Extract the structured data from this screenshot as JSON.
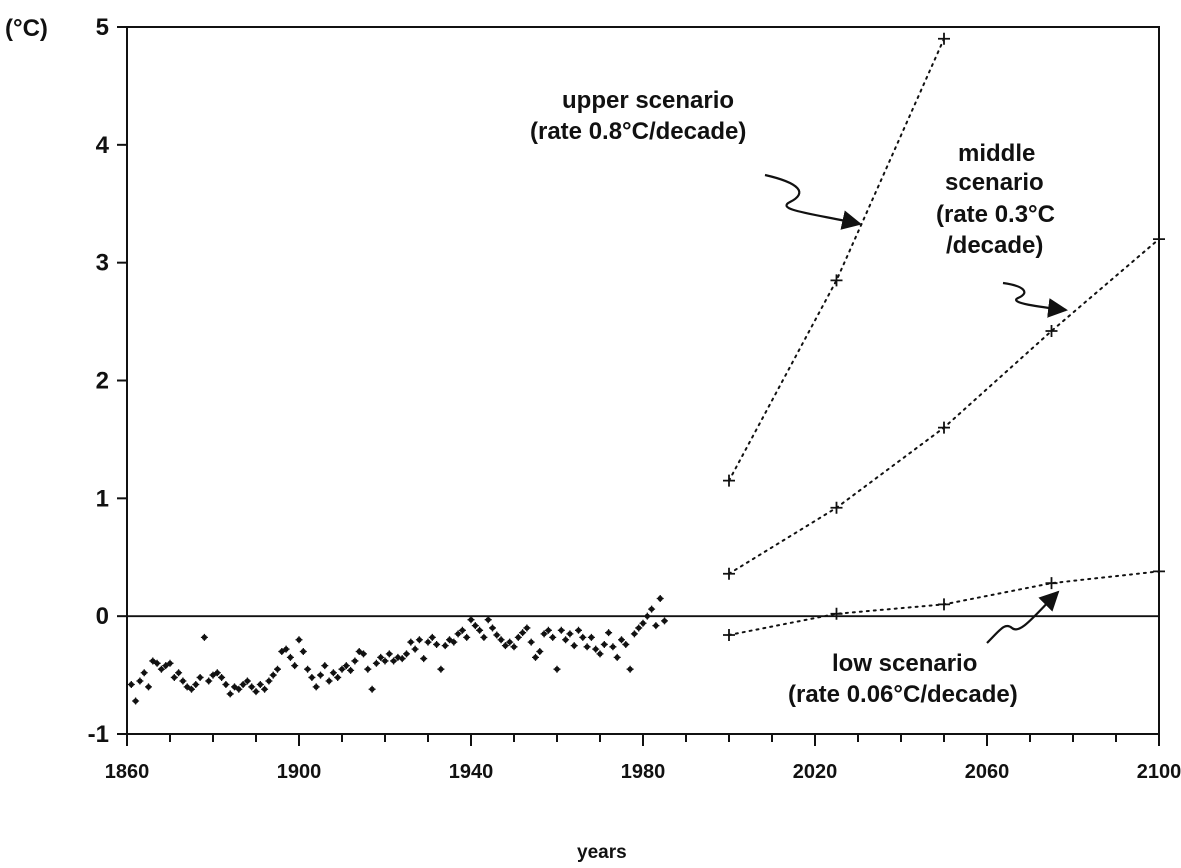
{
  "chart_data": {
    "type": "scatter",
    "title": "",
    "xlabel": "years",
    "ylabel": "(°C)",
    "xlim": [
      1860,
      2100
    ],
    "ylim": [
      -1,
      5
    ],
    "grid": false,
    "x_tick_labels": [
      "1860",
      "1900",
      "1940",
      "1980",
      "2020",
      "2060",
      "2100"
    ],
    "y_tick_labels": [
      "-1",
      "0",
      "1",
      "2",
      "3",
      "4",
      "5"
    ],
    "observed": {
      "x": [
        1861,
        1862,
        1863,
        1864,
        1865,
        1866,
        1867,
        1868,
        1869,
        1870,
        1871,
        1872,
        1873,
        1874,
        1875,
        1876,
        1877,
        1878,
        1879,
        1880,
        1881,
        1882,
        1883,
        1884,
        1885,
        1886,
        1887,
        1888,
        1889,
        1890,
        1891,
        1892,
        1893,
        1894,
        1895,
        1896,
        1897,
        1898,
        1899,
        1900,
        1901,
        1902,
        1903,
        1904,
        1905,
        1906,
        1907,
        1908,
        1909,
        1910,
        1911,
        1912,
        1913,
        1914,
        1915,
        1916,
        1917,
        1918,
        1919,
        1920,
        1921,
        1922,
        1923,
        1924,
        1925,
        1926,
        1927,
        1928,
        1929,
        1930,
        1931,
        1932,
        1933,
        1934,
        1935,
        1936,
        1937,
        1938,
        1939,
        1940,
        1941,
        1942,
        1943,
        1944,
        1945,
        1946,
        1947,
        1948,
        1949,
        1950,
        1951,
        1952,
        1953,
        1954,
        1955,
        1956,
        1957,
        1958,
        1959,
        1960,
        1961,
        1962,
        1963,
        1964,
        1965,
        1966,
        1967,
        1968,
        1969,
        1970,
        1971,
        1972,
        1973,
        1974,
        1975,
        1976,
        1977,
        1978,
        1979,
        1980,
        1981,
        1982,
        1983,
        1984,
        1985
      ],
      "y": [
        -0.58,
        -0.72,
        -0.55,
        -0.48,
        -0.6,
        -0.38,
        -0.4,
        -0.45,
        -0.42,
        -0.4,
        -0.52,
        -0.48,
        -0.55,
        -0.6,
        -0.62,
        -0.58,
        -0.52,
        -0.18,
        -0.55,
        -0.5,
        -0.48,
        -0.52,
        -0.58,
        -0.66,
        -0.6,
        -0.62,
        -0.58,
        -0.55,
        -0.6,
        -0.64,
        -0.58,
        -0.62,
        -0.55,
        -0.5,
        -0.45,
        -0.3,
        -0.28,
        -0.35,
        -0.42,
        -0.2,
        -0.3,
        -0.45,
        -0.52,
        -0.6,
        -0.5,
        -0.42,
        -0.55,
        -0.48,
        -0.52,
        -0.45,
        -0.42,
        -0.46,
        -0.38,
        -0.3,
        -0.32,
        -0.45,
        -0.62,
        -0.4,
        -0.35,
        -0.38,
        -0.32,
        -0.38,
        -0.35,
        -0.36,
        -0.32,
        -0.22,
        -0.28,
        -0.2,
        -0.36,
        -0.22,
        -0.18,
        -0.24,
        -0.45,
        -0.25,
        -0.2,
        -0.22,
        -0.15,
        -0.12,
        -0.18,
        -0.03,
        -0.08,
        -0.12,
        -0.18,
        -0.03,
        -0.1,
        -0.16,
        -0.2,
        -0.25,
        -0.22,
        -0.26,
        -0.18,
        -0.14,
        -0.1,
        -0.22,
        -0.35,
        -0.3,
        -0.15,
        -0.12,
        -0.18,
        -0.45,
        -0.12,
        -0.2,
        -0.15,
        -0.25,
        -0.12,
        -0.18,
        -0.26,
        -0.18,
        -0.28,
        -0.32,
        -0.24,
        -0.14,
        -0.26,
        -0.35,
        -0.2,
        -0.24,
        -0.45,
        -0.15,
        -0.1,
        -0.06,
        0.0,
        0.06,
        -0.08,
        0.15,
        -0.04
      ]
    },
    "series": [
      {
        "x": [
          2000,
          2025,
          2050
        ],
        "y": [
          1.15,
          2.85,
          4.9
        ]
      },
      {
        "x": [
          2000,
          2025,
          2050,
          2075,
          2100
        ],
        "y": [
          0.36,
          0.92,
          1.6,
          2.42,
          3.2
        ]
      },
      {
        "x": [
          2000,
          2025,
          2050,
          2075,
          2100
        ],
        "y": [
          -0.16,
          0.02,
          0.1,
          0.28,
          0.38
        ]
      }
    ],
    "reference_line_y": 0,
    "annotations": {
      "upper": [
        "upper scenario",
        "(rate 0.8°C/decade)"
      ],
      "middle": [
        "middle",
        "scenario",
        "(rate 0.3°C",
        "/decade)"
      ],
      "low": [
        "low scenario",
        "(rate 0.06°C/decade)"
      ]
    }
  }
}
